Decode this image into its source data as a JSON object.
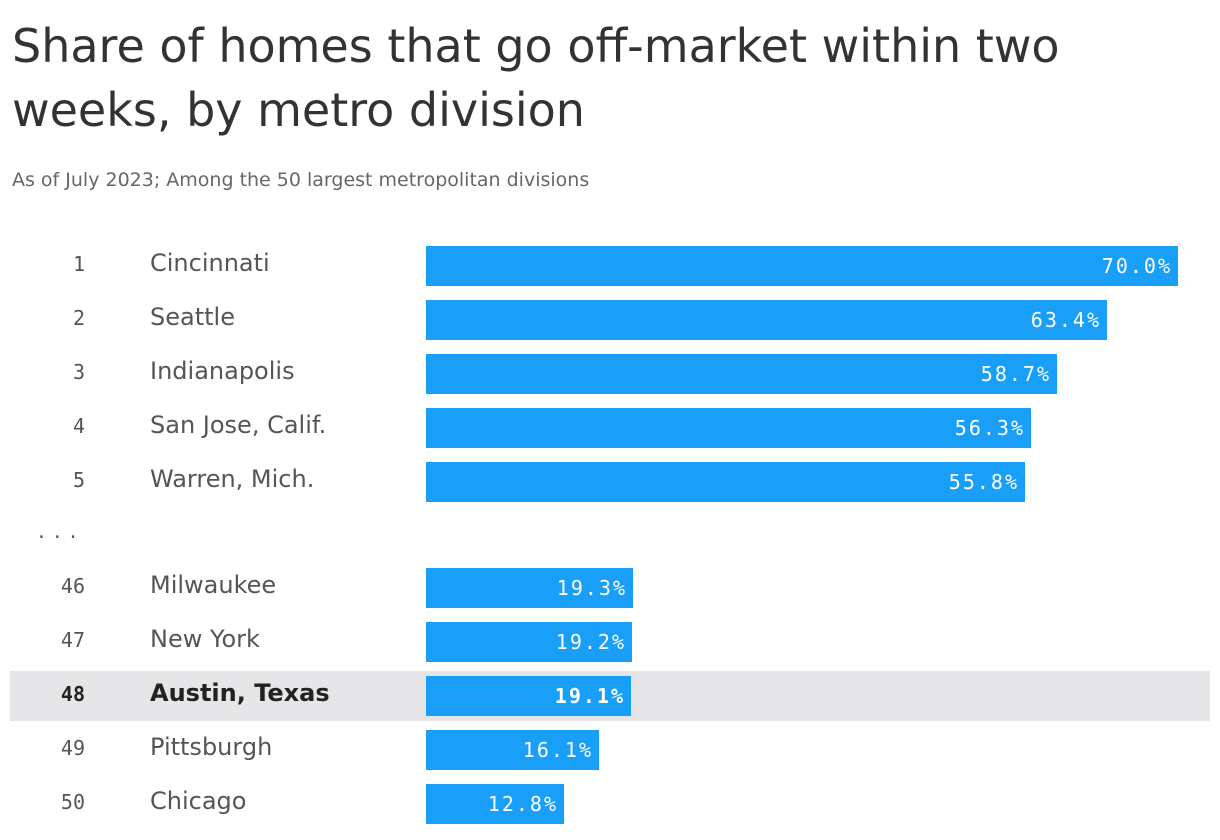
{
  "header": {
    "title": "Share of homes that go off-market within two weeks, by metro division",
    "subtitle": "As of July 2023; Among the 50 largest metropolitan divisions"
  },
  "gap_marker": "...",
  "colors": {
    "bar": "#1a9ff9",
    "highlight_row": "#e6e6e9"
  },
  "chart_data": {
    "type": "bar",
    "orientation": "horizontal",
    "unit": "%",
    "highlight_rank": "48",
    "xlim": [
      0,
      70
    ],
    "rows": [
      {
        "rank": "1",
        "name": "Cincinnati",
        "value": 70.0,
        "label": "70.0%"
      },
      {
        "rank": "2",
        "name": "Seattle",
        "value": 63.4,
        "label": "63.4%"
      },
      {
        "rank": "3",
        "name": "Indianapolis",
        "value": 58.7,
        "label": "58.7%"
      },
      {
        "rank": "4",
        "name": "San Jose, Calif.",
        "value": 56.3,
        "label": "56.3%"
      },
      {
        "rank": "5",
        "name": "Warren, Mich.",
        "value": 55.8,
        "label": "55.8%"
      },
      {
        "rank": "46",
        "name": "Milwaukee",
        "value": 19.3,
        "label": "19.3%"
      },
      {
        "rank": "47",
        "name": "New York",
        "value": 19.2,
        "label": "19.2%"
      },
      {
        "rank": "48",
        "name": "Austin, Texas",
        "value": 19.1,
        "label": "19.1%"
      },
      {
        "rank": "49",
        "name": "Pittsburgh",
        "value": 16.1,
        "label": "16.1%"
      },
      {
        "rank": "50",
        "name": "Chicago",
        "value": 12.8,
        "label": "12.8%"
      }
    ]
  }
}
